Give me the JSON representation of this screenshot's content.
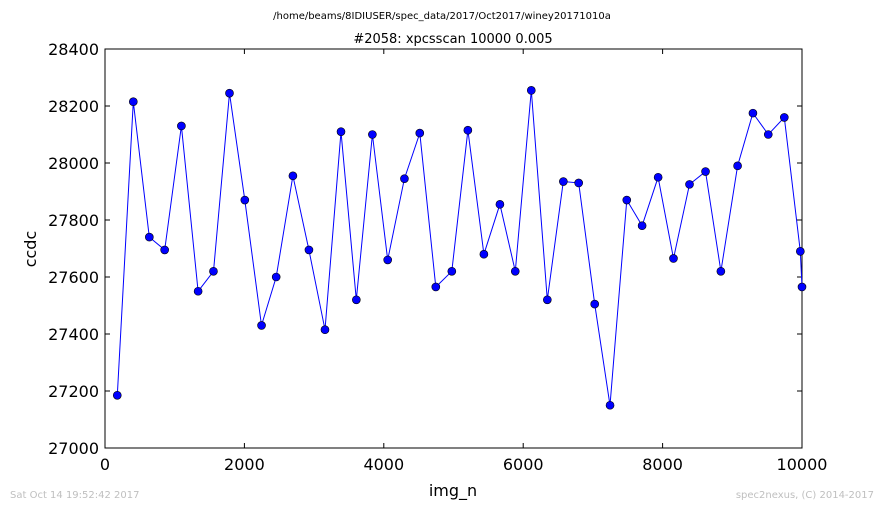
{
  "chart_data": {
    "type": "line",
    "supertitle": "/home/beams/8IDIUSER/spec_data/2017/Oct2017/winey20171010a",
    "title": "#2058: xpcsscan 10000 0.005",
    "xlabel": "img_n",
    "ylabel": "ccdc",
    "xlim": [
      0,
      10000
    ],
    "ylim": [
      27000,
      28400
    ],
    "xticks": [
      0,
      2000,
      4000,
      6000,
      8000,
      10000
    ],
    "yticks": [
      27000,
      27200,
      27400,
      27600,
      27800,
      28000,
      28200,
      28400
    ],
    "grid": false,
    "line_color": "#0000ff",
    "marker_color": "#0000ff",
    "series": [
      {
        "x": [
          176,
          406,
          636,
          856,
          1096,
          1336,
          1556,
          1786,
          2006,
          2246,
          2456,
          2696,
          2926,
          3156,
          3386,
          3606,
          3836,
          4056,
          4296,
          4516,
          4746,
          4976,
          5206,
          5436,
          5666,
          5886,
          6116,
          6346,
          6576,
          6796,
          7026,
          7246,
          7486,
          7706,
          7936,
          8156,
          8386,
          8616,
          8836,
          9076,
          9296,
          9516,
          9746,
          9976,
          10000
        ],
        "y": [
          27185,
          28215,
          27740,
          27695,
          28130,
          27550,
          27620,
          28245,
          27870,
          27430,
          27600,
          27955,
          27695,
          27415,
          28110,
          27520,
          28100,
          27660,
          27945,
          28105,
          27565,
          27620,
          28115,
          27680,
          27855,
          27620,
          28255,
          27520,
          27935,
          27930,
          27505,
          27150,
          27870,
          27780,
          27950,
          27665,
          27925,
          27970,
          27620,
          27990,
          28175,
          28100,
          28160,
          27690,
          27565
        ]
      }
    ]
  },
  "footer": {
    "timestamp": "Sat Oct 14 19:52:42 2017",
    "credit": "spec2nexus, (C) 2014-2017"
  }
}
